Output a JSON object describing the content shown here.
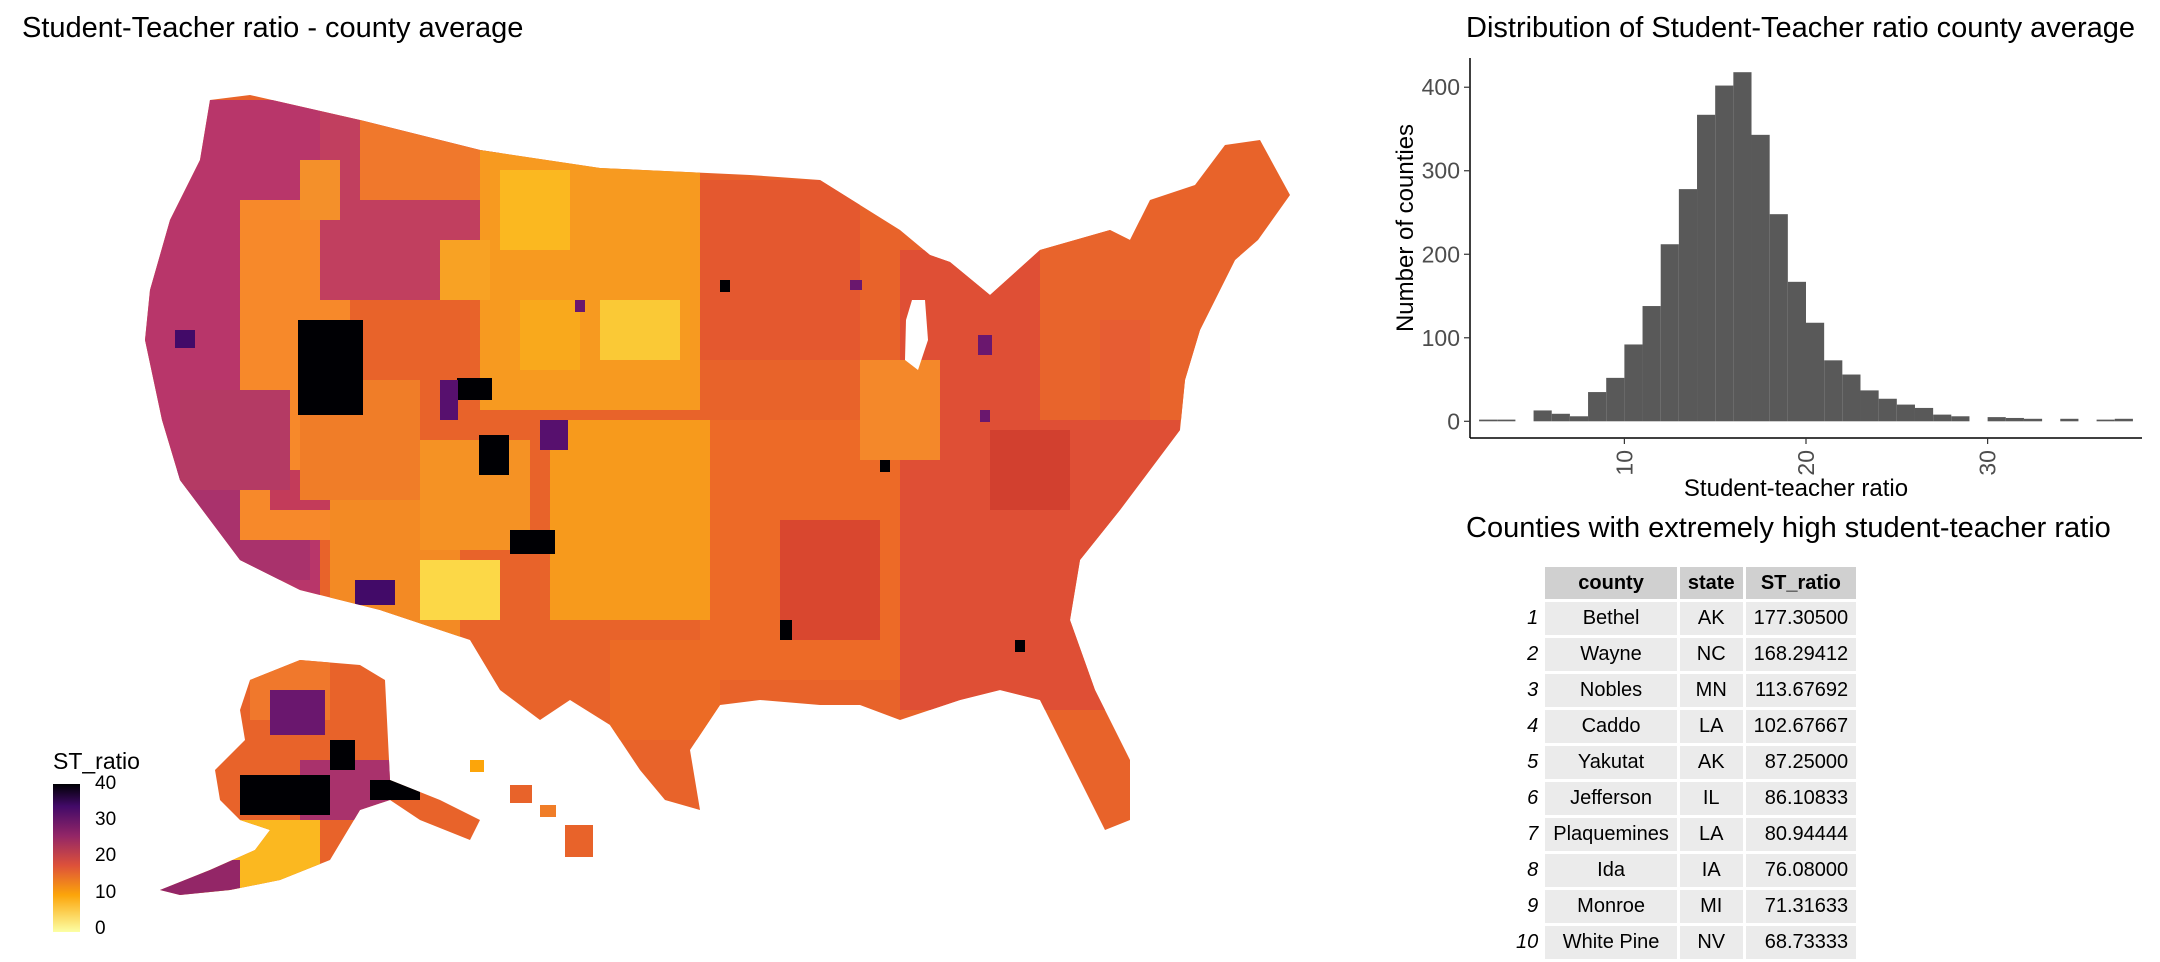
{
  "map": {
    "title": "Student-Teacher ratio - county average",
    "legend": {
      "title": "ST_ratio",
      "ticks": [
        "40",
        "30",
        "20",
        "10",
        "0"
      ],
      "range": [
        0,
        40
      ],
      "colors": [
        "#fcffa4",
        "#fca50a",
        "#dd513a",
        "#932667",
        "#420a68",
        "#000004"
      ]
    }
  },
  "chart_data": [
    {
      "type": "bar",
      "title": "Distribution of Student-Teacher ratio county average",
      "xlabel": "Student-teacher ratio",
      "ylabel": "Number of counties",
      "xlim": [
        1.5,
        38.5
      ],
      "ylim": [
        -20,
        435
      ],
      "xticks": [
        10,
        20,
        30
      ],
      "yticks": [
        0,
        100,
        200,
        300,
        400
      ],
      "bin_width": 1,
      "bar_color": "#595959",
      "bins_start": [
        2,
        3,
        5,
        6,
        7,
        8,
        9,
        10,
        11,
        12,
        13,
        14,
        15,
        16,
        17,
        18,
        19,
        20,
        21,
        22,
        23,
        24,
        25,
        26,
        27,
        28,
        30,
        31,
        32,
        34,
        36,
        37
      ],
      "counts": [
        2,
        2,
        13,
        9,
        6,
        35,
        52,
        92,
        138,
        212,
        278,
        367,
        402,
        418,
        343,
        248,
        167,
        118,
        73,
        56,
        37,
        27,
        20,
        16,
        8,
        6,
        5,
        4,
        3,
        3,
        2,
        3
      ]
    },
    {
      "type": "table",
      "title": "Counties with extremely high student-teacher ratio",
      "columns": [
        "county",
        "state",
        "ST_ratio"
      ],
      "rows": [
        {
          "n": "1",
          "county": "Bethel",
          "state": "AK",
          "ratio": "177.30500"
        },
        {
          "n": "2",
          "county": "Wayne",
          "state": "NC",
          "ratio": "168.29412"
        },
        {
          "n": "3",
          "county": "Nobles",
          "state": "MN",
          "ratio": "113.67692"
        },
        {
          "n": "4",
          "county": "Caddo",
          "state": "LA",
          "ratio": "102.67667"
        },
        {
          "n": "5",
          "county": "Yakutat",
          "state": "AK",
          "ratio": "87.25000"
        },
        {
          "n": "6",
          "county": "Jefferson",
          "state": "IL",
          "ratio": "86.10833"
        },
        {
          "n": "7",
          "county": "Plaquemines",
          "state": "LA",
          "ratio": "80.94444"
        },
        {
          "n": "8",
          "county": "Ida",
          "state": "IA",
          "ratio": "76.08000"
        },
        {
          "n": "9",
          "county": "Monroe",
          "state": "MI",
          "ratio": "71.31633"
        },
        {
          "n": "10",
          "county": "White Pine",
          "state": "NV",
          "ratio": "68.73333"
        }
      ]
    }
  ]
}
